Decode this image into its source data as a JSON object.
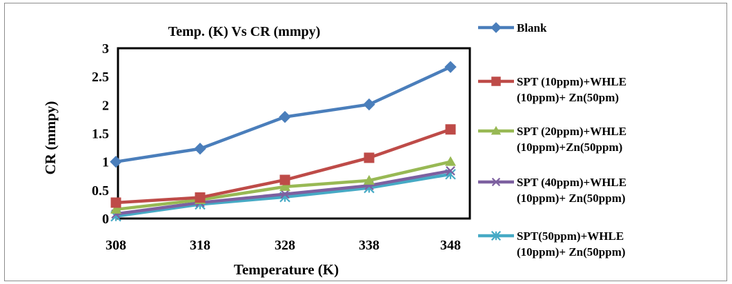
{
  "chart_data": {
    "type": "line",
    "title": "Temp. (K) Vs CR (mmpy)",
    "xlabel": "Temperature (K)",
    "ylabel": "CR (mmpy)",
    "categories": [
      "308",
      "318",
      "328",
      "338",
      "348"
    ],
    "ylim": [
      0,
      3
    ],
    "yticks": [
      "0",
      "0.5",
      "1",
      "1.5",
      "2",
      "2.5",
      "3"
    ],
    "grid": false,
    "legend_position": "right",
    "series": [
      {
        "name": "Blank",
        "values": [
          1.0,
          1.23,
          1.79,
          2.01,
          2.67
        ],
        "color": "#4a7ebb",
        "marker": "diamond"
      },
      {
        "name": "SPT (10ppm)+WHLE (10ppm)+ Zn(50pm)",
        "values": [
          0.28,
          0.37,
          0.68,
          1.07,
          1.57
        ],
        "color": "#be4b48",
        "marker": "square"
      },
      {
        "name": "SPT (20ppm)+WHLE (10ppm)+Zn(50ppm)",
        "values": [
          0.16,
          0.33,
          0.56,
          0.67,
          1.0
        ],
        "color": "#98b954",
        "marker": "triangle"
      },
      {
        "name": "SPT (40ppm)+WHLE (10ppm)+ Zn(50ppm)",
        "values": [
          0.08,
          0.28,
          0.43,
          0.58,
          0.84
        ],
        "color": "#7d60a0",
        "marker": "x"
      },
      {
        "name": "SPT(50ppm)+WHLE(10ppm)+ Zn(50ppm)",
        "values": [
          0.04,
          0.25,
          0.38,
          0.54,
          0.78
        ],
        "color": "#46aac5",
        "marker": "star"
      }
    ]
  }
}
